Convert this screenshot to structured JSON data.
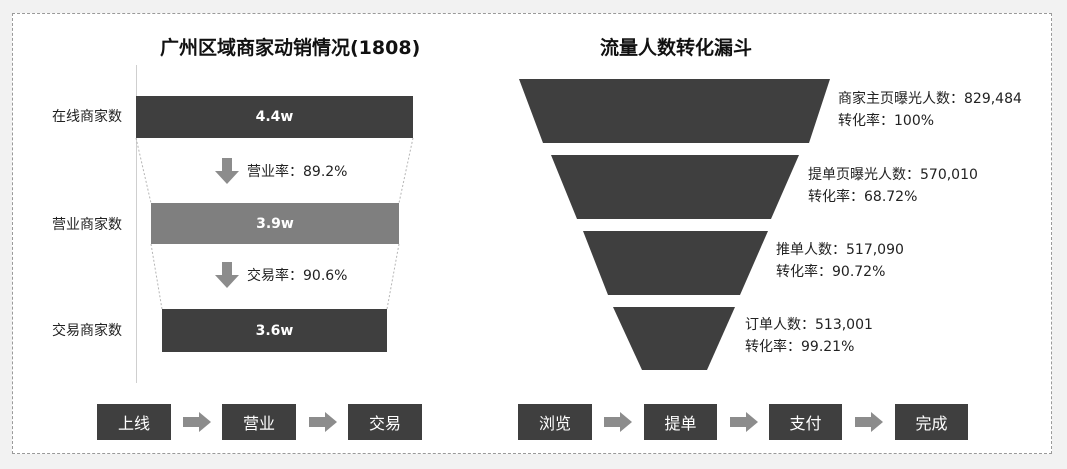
{
  "left_chart": {
    "title": "广州区域商家动销情况(1808)",
    "rows": [
      {
        "label": "在线商家数",
        "value": "4.4w",
        "color": "#3f3f3f"
      },
      {
        "label": "营业商家数",
        "value": "3.9w",
        "color": "#7f7f7f"
      },
      {
        "label": "交易商家数",
        "value": "3.6w",
        "color": "#3f3f3f"
      }
    ],
    "rates": [
      {
        "label": "营业率：89.2%"
      },
      {
        "label": "交易率：90.6%"
      }
    ],
    "flow": [
      "上线",
      "营业",
      "交易"
    ]
  },
  "right_chart": {
    "title": "流量人数转化漏斗",
    "stages": [
      {
        "name": "商家主页曝光人数：829,484",
        "rate": "转化率：100%"
      },
      {
        "name": "提单页曝光人数：570,010",
        "rate": "转化率：68.72%"
      },
      {
        "name": "推单人数：517,090",
        "rate": "转化率：90.72%"
      },
      {
        "name": "订单人数：513,001",
        "rate": "转化率：99.21%"
      }
    ],
    "flow": [
      "浏览",
      "提单",
      "支付",
      "完成"
    ]
  },
  "colors": {
    "dark": "#3f3f3f",
    "mid": "#7f7f7f",
    "arrow": "#8c8c8c"
  },
  "chart_data": [
    {
      "type": "bar",
      "title": "广州区域商家动销情况(1808)",
      "categories": [
        "在线商家数",
        "营业商家数",
        "交易商家数"
      ],
      "values": [
        44000,
        39000,
        36000
      ],
      "value_labels": [
        "4.4w",
        "3.9w",
        "3.6w"
      ],
      "rates": [
        {
          "name": "营业率",
          "value": 89.2
        },
        {
          "name": "交易率",
          "value": 90.6
        }
      ]
    },
    {
      "type": "bar",
      "title": "流量人数转化漏斗",
      "categories": [
        "商家主页曝光人数",
        "提单页曝光人数",
        "推单人数",
        "订单人数"
      ],
      "values": [
        829484,
        570010,
        517090,
        513001
      ],
      "conversion_rates": [
        100,
        68.72,
        90.72,
        99.21
      ]
    }
  ]
}
